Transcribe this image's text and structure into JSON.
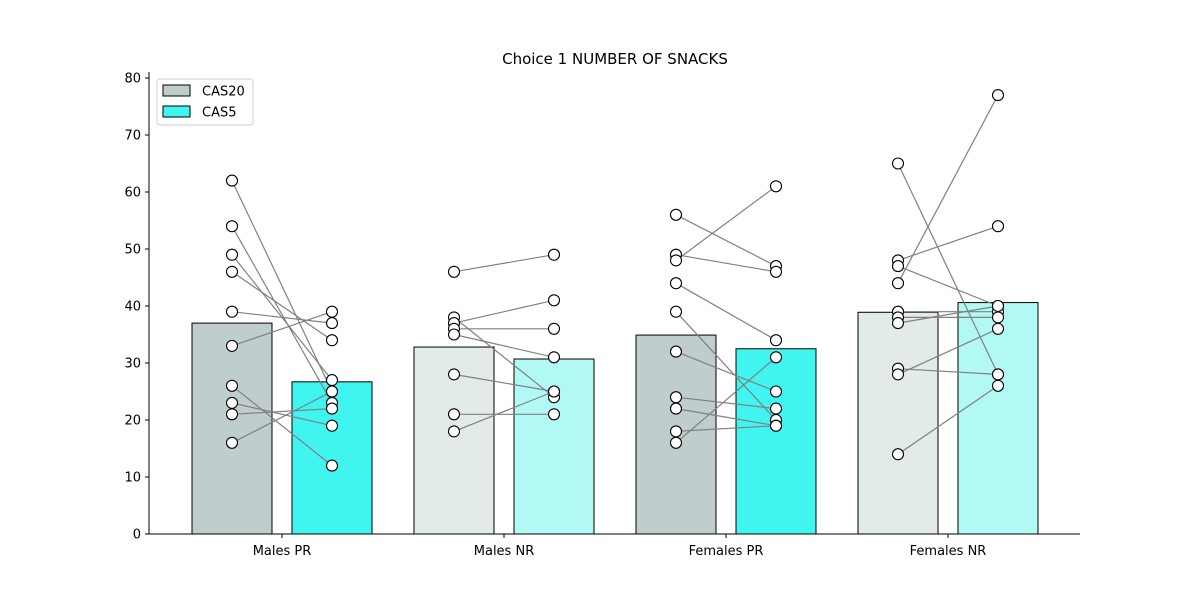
{
  "chart_data": {
    "type": "bar",
    "title": "Choice 1 NUMBER OF SNACKS",
    "xlabel": "",
    "ylabel": "",
    "ylim": [
      0,
      80
    ],
    "yticks": [
      0,
      10,
      20,
      30,
      40,
      50,
      60,
      70,
      80
    ],
    "categories": [
      "Males PR",
      "Males NR",
      "Females PR",
      "Females NR"
    ],
    "legend": {
      "placement": "top-left",
      "entries": [
        "CAS20",
        "CAS5"
      ]
    },
    "series": [
      {
        "name": "CAS20",
        "values": [
          37,
          32.8,
          34.9,
          38.9
        ],
        "colors": [
          "#bfcdcc",
          "#e3eaea",
          "#bfcdcc",
          "#e3eaea"
        ]
      },
      {
        "name": "CAS5",
        "values": [
          26.7,
          30.7,
          32.5,
          40.6
        ],
        "colors": [
          "#40f4f0",
          "#b2f9f6",
          "#40f4f0",
          "#b2f9f6"
        ]
      }
    ],
    "paired_points": [
      [
        [
          62,
          25
        ],
        [
          54,
          23
        ],
        [
          49,
          27
        ],
        [
          46,
          34
        ],
        [
          39,
          37
        ],
        [
          33,
          39
        ],
        [
          26,
          12
        ],
        [
          23,
          19
        ],
        [
          21,
          22
        ],
        [
          16,
          25
        ]
      ],
      [
        [
          46,
          49
        ],
        [
          38,
          24
        ],
        [
          37,
          41
        ],
        [
          36,
          36
        ],
        [
          35,
          31
        ],
        [
          28,
          25
        ],
        [
          21,
          21
        ],
        [
          18,
          25
        ]
      ],
      [
        [
          56,
          47
        ],
        [
          49,
          46
        ],
        [
          48,
          61
        ],
        [
          44,
          34
        ],
        [
          39,
          20
        ],
        [
          32,
          25
        ],
        [
          24,
          22
        ],
        [
          22,
          19
        ],
        [
          18,
          19
        ],
        [
          16,
          31
        ]
      ],
      [
        [
          65,
          28
        ],
        [
          48,
          54
        ],
        [
          47,
          40
        ],
        [
          44,
          77
        ],
        [
          39,
          39
        ],
        [
          38,
          38
        ],
        [
          37,
          40
        ],
        [
          29,
          28
        ],
        [
          28,
          36
        ],
        [
          14,
          26
        ]
      ]
    ],
    "grid": false
  }
}
